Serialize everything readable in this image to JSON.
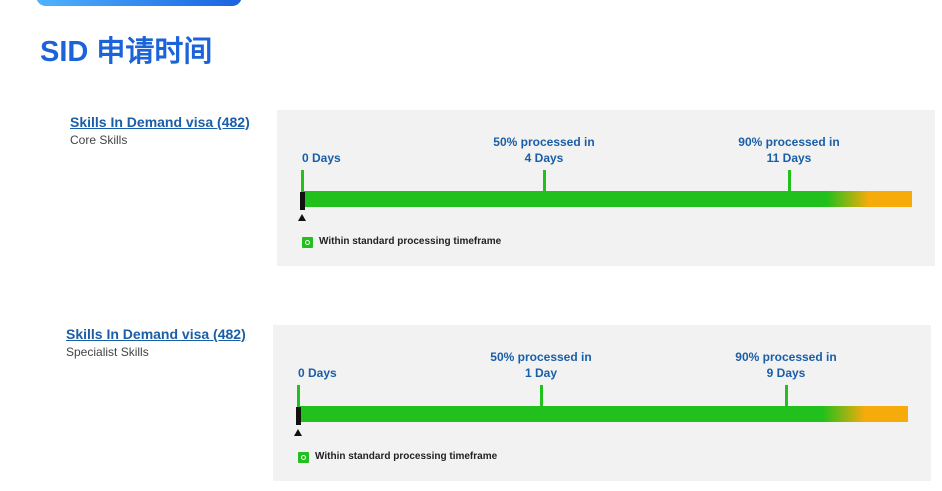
{
  "title": "SID 申请时间",
  "panels": [
    {
      "visa": "Skills In Demand visa (482)",
      "stream": "Core Skills",
      "markers": [
        {
          "value": "0 Days"
        },
        {
          "heading": "50% processed in",
          "value": "4 Days"
        },
        {
          "heading": "90% processed in",
          "value": "11 Days"
        }
      ],
      "legend": "Within standard processing timeframe"
    },
    {
      "visa": "Skills In Demand visa (482)",
      "stream": "Specialist Skills",
      "markers": [
        {
          "value": "0 Days"
        },
        {
          "heading": "50% processed in",
          "value": "1 Day"
        },
        {
          "heading": "90% processed in",
          "value": "9 Days"
        }
      ],
      "legend": "Within standard processing timeframe"
    }
  ]
}
